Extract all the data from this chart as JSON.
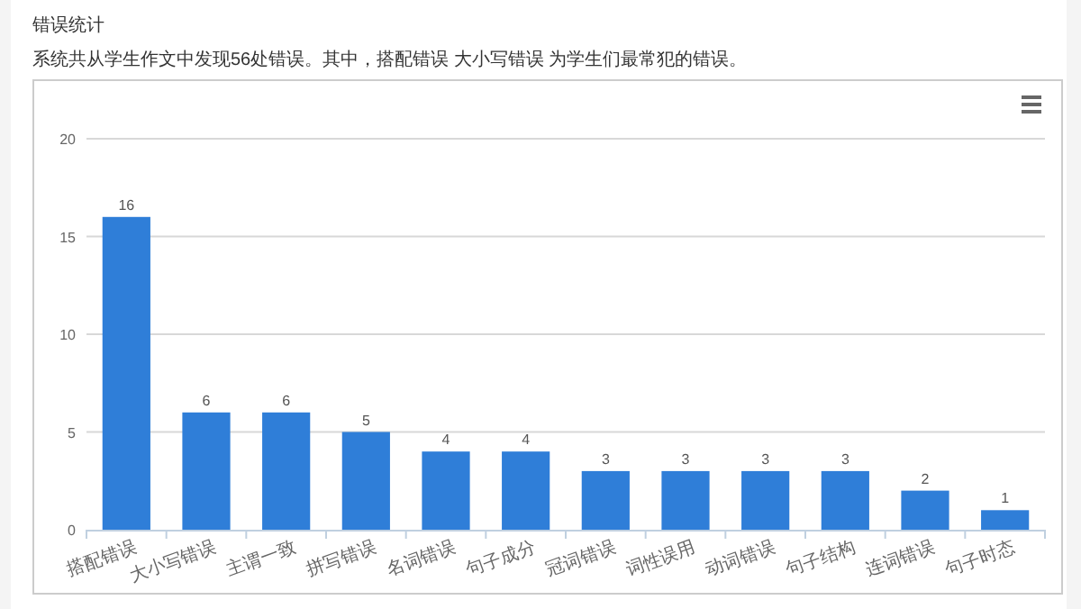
{
  "chart_data": {
    "type": "bar",
    "title": "错误统计",
    "subtitle": "系统共从学生作文中发现56处错误。其中，搭配错误 大小写错误 为学生们最常犯的错误。",
    "categories": [
      "搭配错误",
      "大小写错误",
      "主谓一致",
      "拼写错误",
      "名词错误",
      "句子成分",
      "冠词错误",
      "词性误用",
      "动词错误",
      "句子结构",
      "连词错误",
      "句子时态"
    ],
    "values": [
      16,
      6,
      6,
      5,
      4,
      4,
      3,
      3,
      3,
      3,
      2,
      1
    ],
    "color": "#2f7ed8",
    "ylim": [
      0,
      20
    ],
    "yticks": [
      0,
      5,
      10,
      15,
      20
    ],
    "grid": "y",
    "data_labels": true
  }
}
